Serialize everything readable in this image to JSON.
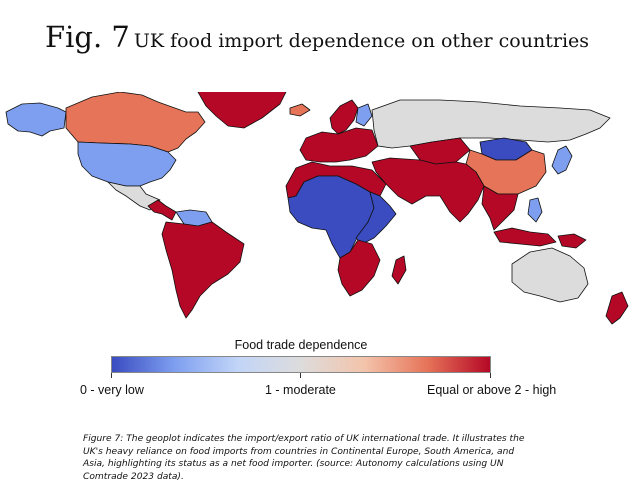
{
  "title": {
    "figure_number": "Fig. 7",
    "text": "UK food import dependence on other countries"
  },
  "map": {
    "colors": {
      "very_low": "#3a4cc0",
      "low": "#7e9ff0",
      "moderate": "#dddcdc",
      "elevated": "#e67459",
      "high": "#b50826"
    },
    "regions": [
      {
        "name": "Alaska",
        "category": "low"
      },
      {
        "name": "Canada",
        "category": "elevated"
      },
      {
        "name": "Greenland",
        "category": "high"
      },
      {
        "name": "United States",
        "category": "low"
      },
      {
        "name": "Mexico",
        "category": "moderate"
      },
      {
        "name": "Central America",
        "category": "high"
      },
      {
        "name": "Venezuela",
        "category": "low"
      },
      {
        "name": "South America",
        "category": "high"
      },
      {
        "name": "Iceland",
        "category": "elevated"
      },
      {
        "name": "Scandinavia",
        "category": "high"
      },
      {
        "name": "Finland",
        "category": "low"
      },
      {
        "name": "Western Europe",
        "category": "high"
      },
      {
        "name": "Russia",
        "category": "moderate"
      },
      {
        "name": "Kazakhstan",
        "category": "high"
      },
      {
        "name": "Mongolia",
        "category": "very_low"
      },
      {
        "name": "China",
        "category": "elevated"
      },
      {
        "name": "Japan",
        "category": "low"
      },
      {
        "name": "Middle East and South Asia",
        "category": "high"
      },
      {
        "name": "Southeast Asia",
        "category": "high"
      },
      {
        "name": "Philippines",
        "category": "low"
      },
      {
        "name": "Indonesia",
        "category": "high"
      },
      {
        "name": "Papua New Guinea",
        "category": "high"
      },
      {
        "name": "North Africa",
        "category": "high"
      },
      {
        "name": "Sahel and Central Africa",
        "category": "very_low"
      },
      {
        "name": "East Africa",
        "category": "very_low"
      },
      {
        "name": "Southern Africa",
        "category": "high"
      },
      {
        "name": "Madagascar",
        "category": "high"
      },
      {
        "name": "Australia",
        "category": "moderate"
      },
      {
        "name": "New Zealand",
        "category": "high"
      }
    ]
  },
  "legend": {
    "title": "Food trade dependence",
    "ticks": [
      {
        "label": "0 - very low"
      },
      {
        "label": "1 - moderate"
      },
      {
        "label": "Equal or above 2 - high"
      }
    ]
  },
  "caption": "Figure 7: The geoplot indicates the import/export ratio of UK international trade. It illustrates the UK's heavy reliance on food imports from countries in Continental Europe, South America, and Asia, highlighting its status as a net food importer. (source: Autonomy calculations using UN Comtrade 2023 data)."
}
